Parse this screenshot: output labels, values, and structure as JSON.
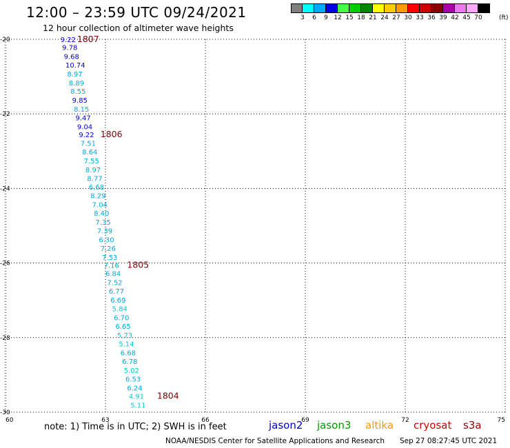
{
  "header": {
    "title": "12:00 – 23:59 UTC 09/24/2021",
    "subtitle": "12 hour collection of altimeter wave heights"
  },
  "color_scale": {
    "unit": "(ft)",
    "colors": [
      "#808080",
      "#00ffff",
      "#00aaff",
      "#0000e0",
      "#44ff44",
      "#00cc00",
      "#008800",
      "#ffff00",
      "#ffcc00",
      "#ff9900",
      "#ff0000",
      "#cc0000",
      "#880000",
      "#aa00aa",
      "#ee77ee",
      "#ffaaff",
      "#000000"
    ],
    "labels": [
      "3",
      "6",
      "9",
      "12",
      "15",
      "18",
      "21",
      "24",
      "27",
      "30",
      "33",
      "36",
      "39",
      "42",
      "45",
      "70"
    ]
  },
  "axes": {
    "y_labels": [
      "-20",
      "-22",
      "-24",
      "-26",
      "-28",
      "-30"
    ],
    "x_labels": [
      "60",
      "63",
      "66",
      "69",
      "72",
      "75"
    ]
  },
  "chart_data": {
    "type": "scatter",
    "x_range": [
      60,
      75
    ],
    "y_range": [
      -30,
      -20
    ],
    "grid": true,
    "points": [
      {
        "lon": 61.65,
        "lat": -20.0,
        "v": "9.22",
        "c": "#0000cc"
      },
      {
        "lon": 61.7,
        "lat": -20.21,
        "v": "9.78",
        "c": "#0000cc"
      },
      {
        "lon": 61.75,
        "lat": -20.45,
        "v": "9.68",
        "c": "#0000cc"
      },
      {
        "lon": 61.8,
        "lat": -20.68,
        "v": "10.74",
        "c": "#0000cc"
      },
      {
        "lon": 61.85,
        "lat": -20.92,
        "v": "8.97",
        "c": "#00aadd"
      },
      {
        "lon": 61.9,
        "lat": -21.16,
        "v": "8.89",
        "c": "#00aadd"
      },
      {
        "lon": 61.95,
        "lat": -21.39,
        "v": "8.55",
        "c": "#00aadd"
      },
      {
        "lon": 62.0,
        "lat": -21.63,
        "v": "9.85",
        "c": "#0000cc"
      },
      {
        "lon": 62.05,
        "lat": -21.87,
        "v": "8.15",
        "c": "#00aadd"
      },
      {
        "lon": 62.1,
        "lat": -22.1,
        "v": "9.47",
        "c": "#0000cc"
      },
      {
        "lon": 62.15,
        "lat": -22.34,
        "v": "9.04",
        "c": "#0000cc"
      },
      {
        "lon": 62.2,
        "lat": -22.55,
        "v": "9.22",
        "c": "#0000cc"
      },
      {
        "lon": 62.25,
        "lat": -22.78,
        "v": "7.51",
        "c": "#00aadd"
      },
      {
        "lon": 62.3,
        "lat": -23.01,
        "v": "8.64",
        "c": "#00aadd"
      },
      {
        "lon": 62.35,
        "lat": -23.25,
        "v": "7.55",
        "c": "#00aadd"
      },
      {
        "lon": 62.4,
        "lat": -23.49,
        "v": "8.97",
        "c": "#00aadd"
      },
      {
        "lon": 62.45,
        "lat": -23.72,
        "v": "8.77",
        "c": "#00aadd"
      },
      {
        "lon": 62.5,
        "lat": -23.96,
        "v": "6.68",
        "c": "#00aadd"
      },
      {
        "lon": 62.55,
        "lat": -24.19,
        "v": "8.29",
        "c": "#00aadd"
      },
      {
        "lon": 62.6,
        "lat": -24.43,
        "v": "7.04",
        "c": "#00aadd"
      },
      {
        "lon": 62.65,
        "lat": -24.66,
        "v": "8.40",
        "c": "#00aadd"
      },
      {
        "lon": 62.7,
        "lat": -24.9,
        "v": "7.35",
        "c": "#00aadd"
      },
      {
        "lon": 62.75,
        "lat": -25.13,
        "v": "7.39",
        "c": "#00aadd"
      },
      {
        "lon": 62.8,
        "lat": -25.37,
        "v": "6.30",
        "c": "#00aadd"
      },
      {
        "lon": 62.85,
        "lat": -25.6,
        "v": "7.26",
        "c": "#00aadd"
      },
      {
        "lon": 62.9,
        "lat": -25.84,
        "v": "7.53",
        "c": "#00aadd"
      },
      {
        "lon": 62.95,
        "lat": -26.05,
        "v": "7.16",
        "c": "#00aadd"
      },
      {
        "lon": 63.0,
        "lat": -26.28,
        "v": "6.84",
        "c": "#00aadd"
      },
      {
        "lon": 63.05,
        "lat": -26.52,
        "v": "7.52",
        "c": "#00aadd"
      },
      {
        "lon": 63.1,
        "lat": -26.75,
        "v": "6.77",
        "c": "#00aadd"
      },
      {
        "lon": 63.15,
        "lat": -26.99,
        "v": "6.69",
        "c": "#00aadd"
      },
      {
        "lon": 63.2,
        "lat": -27.22,
        "v": "5.84",
        "c": "#00cccc"
      },
      {
        "lon": 63.25,
        "lat": -27.46,
        "v": "6.70",
        "c": "#00aadd"
      },
      {
        "lon": 63.3,
        "lat": -27.69,
        "v": "6.65",
        "c": "#00aadd"
      },
      {
        "lon": 63.35,
        "lat": -27.93,
        "v": "5.73",
        "c": "#00cccc"
      },
      {
        "lon": 63.4,
        "lat": -28.16,
        "v": "5.14",
        "c": "#00cccc"
      },
      {
        "lon": 63.45,
        "lat": -28.4,
        "v": "6.68",
        "c": "#00aadd"
      },
      {
        "lon": 63.5,
        "lat": -28.63,
        "v": "6.78",
        "c": "#00aadd"
      },
      {
        "lon": 63.55,
        "lat": -28.87,
        "v": "5.02",
        "c": "#00cccc"
      },
      {
        "lon": 63.6,
        "lat": -29.1,
        "v": "6.53",
        "c": "#00aadd"
      },
      {
        "lon": 63.65,
        "lat": -29.34,
        "v": "6.24",
        "c": "#00aadd"
      },
      {
        "lon": 63.7,
        "lat": -29.57,
        "v": "4.91",
        "c": "#00cccc"
      },
      {
        "lon": 63.75,
        "lat": -29.81,
        "v": "5.11",
        "c": "#00cccc"
      }
    ],
    "cycle_labels": [
      {
        "lon": 62.15,
        "lat": -20.0,
        "text": "1807"
      },
      {
        "lon": 62.85,
        "lat": -22.55,
        "text": "1806"
      },
      {
        "lon": 63.65,
        "lat": -26.05,
        "text": "1805"
      },
      {
        "lon": 64.55,
        "lat": -29.57,
        "text": "1804"
      }
    ]
  },
  "footer": {
    "note": "note: 1) Time is in UTC; 2) SWH is in feet",
    "satellites": [
      {
        "name": "jason2",
        "color": "#0000cc"
      },
      {
        "name": "jason3",
        "color": "#009900"
      },
      {
        "name": "altika",
        "color": "#ff9900"
      },
      {
        "name": "cryosat",
        "color": "#cc0000"
      },
      {
        "name": "s3a",
        "color": "#990000"
      }
    ],
    "credit": "NOAA/NESDIS Center for Satellite Applications and Research",
    "timestamp": "Sep 27 08:27:45 UTC 2021"
  }
}
